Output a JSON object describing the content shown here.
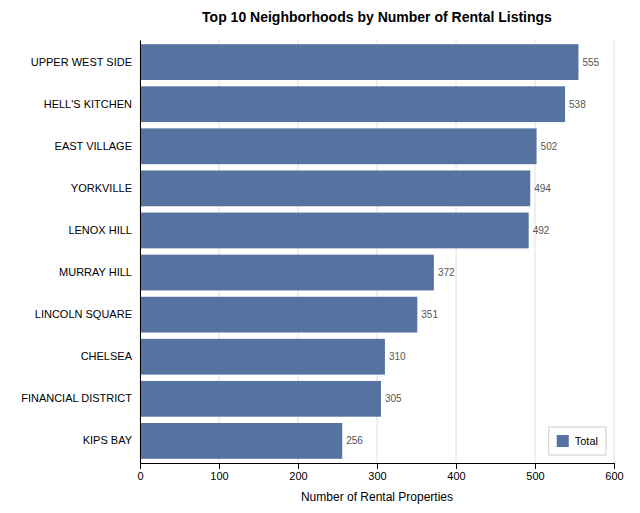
{
  "chart_data": {
    "type": "bar",
    "orientation": "horizontal",
    "title": "Top 10 Neighborhoods by Number of Rental Listings",
    "xlabel": "Number of Rental Properties",
    "categories": [
      "UPPER WEST SIDE",
      "HELL'S KITCHEN",
      "EAST VILLAGE",
      "YORKVILLE",
      "LENOX HILL",
      "MURRAY HILL",
      "LINCOLN SQUARE",
      "CHELSEA",
      "FINANCIAL DISTRICT",
      "KIPS BAY"
    ],
    "series": [
      {
        "name": "Total",
        "color": "#5572a0",
        "values": [
          555,
          538,
          502,
          494,
          492,
          372,
          351,
          310,
          305,
          256
        ]
      }
    ],
    "xlim": [
      0,
      600
    ],
    "xticks": [
      0,
      100,
      200,
      300,
      400,
      500,
      600
    ],
    "grid": true,
    "data_labels": true,
    "legend": "lower right"
  }
}
